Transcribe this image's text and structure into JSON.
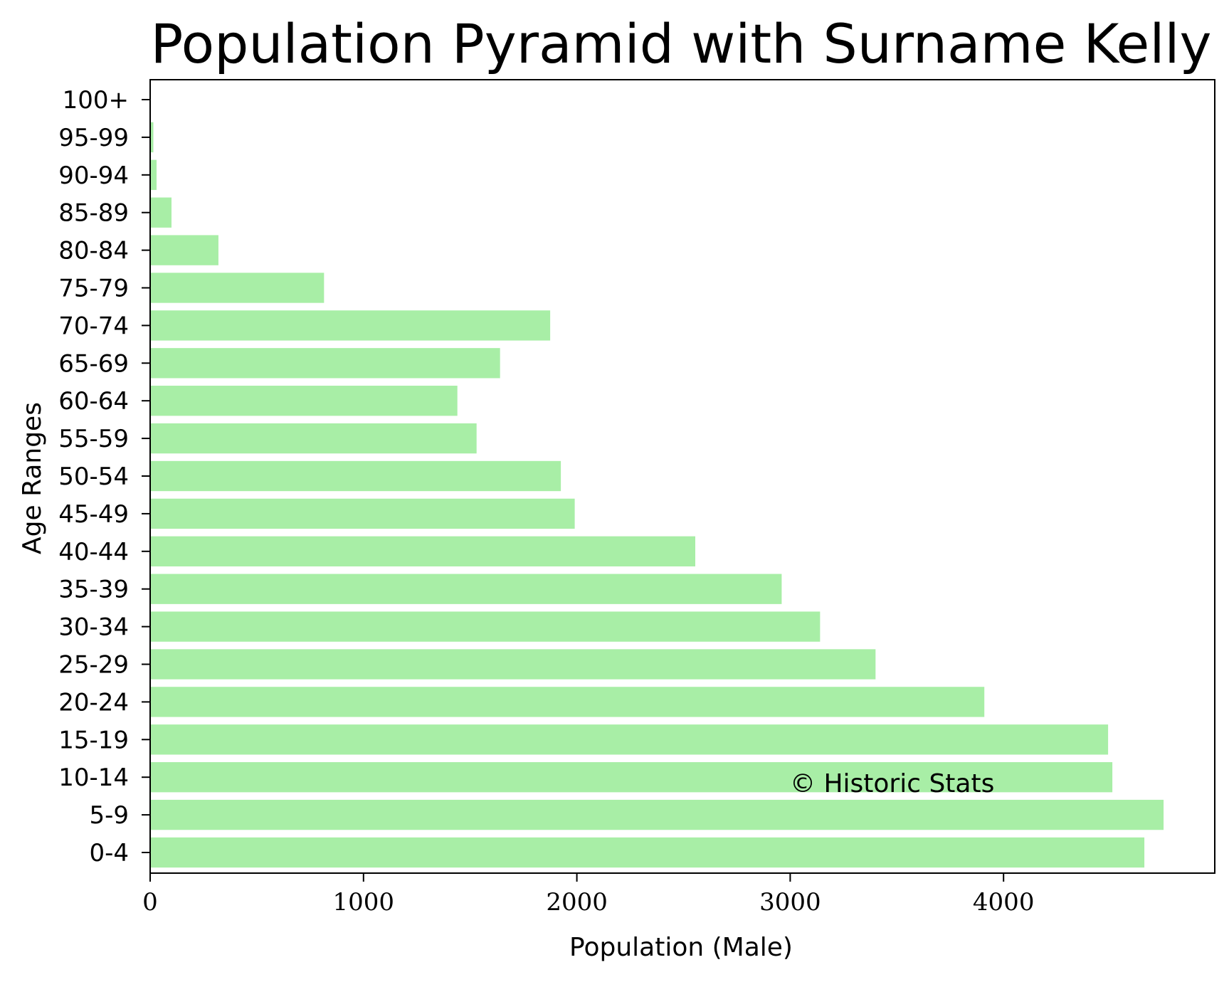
{
  "chart_data": {
    "type": "bar",
    "orientation": "horizontal",
    "title": "Population Pyramid with Surname Kelly",
    "xlabel": "Population (Male)",
    "ylabel": "Age Ranges",
    "categories": [
      "0-4",
      "5-9",
      "10-14",
      "15-19",
      "20-24",
      "25-29",
      "30-34",
      "35-39",
      "40-44",
      "45-49",
      "50-54",
      "55-59",
      "60-64",
      "65-69",
      "70-74",
      "75-79",
      "80-84",
      "85-89",
      "90-94",
      "95-99",
      "100+"
    ],
    "values": [
      4660,
      4750,
      4510,
      4490,
      3910,
      3400,
      3140,
      2960,
      2555,
      1990,
      1925,
      1530,
      1440,
      1640,
      1875,
      815,
      320,
      100,
      30,
      15,
      0
    ],
    "xlim": [
      0,
      4990
    ],
    "xticks": [
      0,
      1000,
      2000,
      3000,
      4000
    ],
    "xtick_labels": [
      "0",
      "1000",
      "2000",
      "3000",
      "4000"
    ],
    "bar_color": "#a8eea6",
    "grid": false,
    "legend": "none",
    "watermark": "© Historic Stats"
  }
}
